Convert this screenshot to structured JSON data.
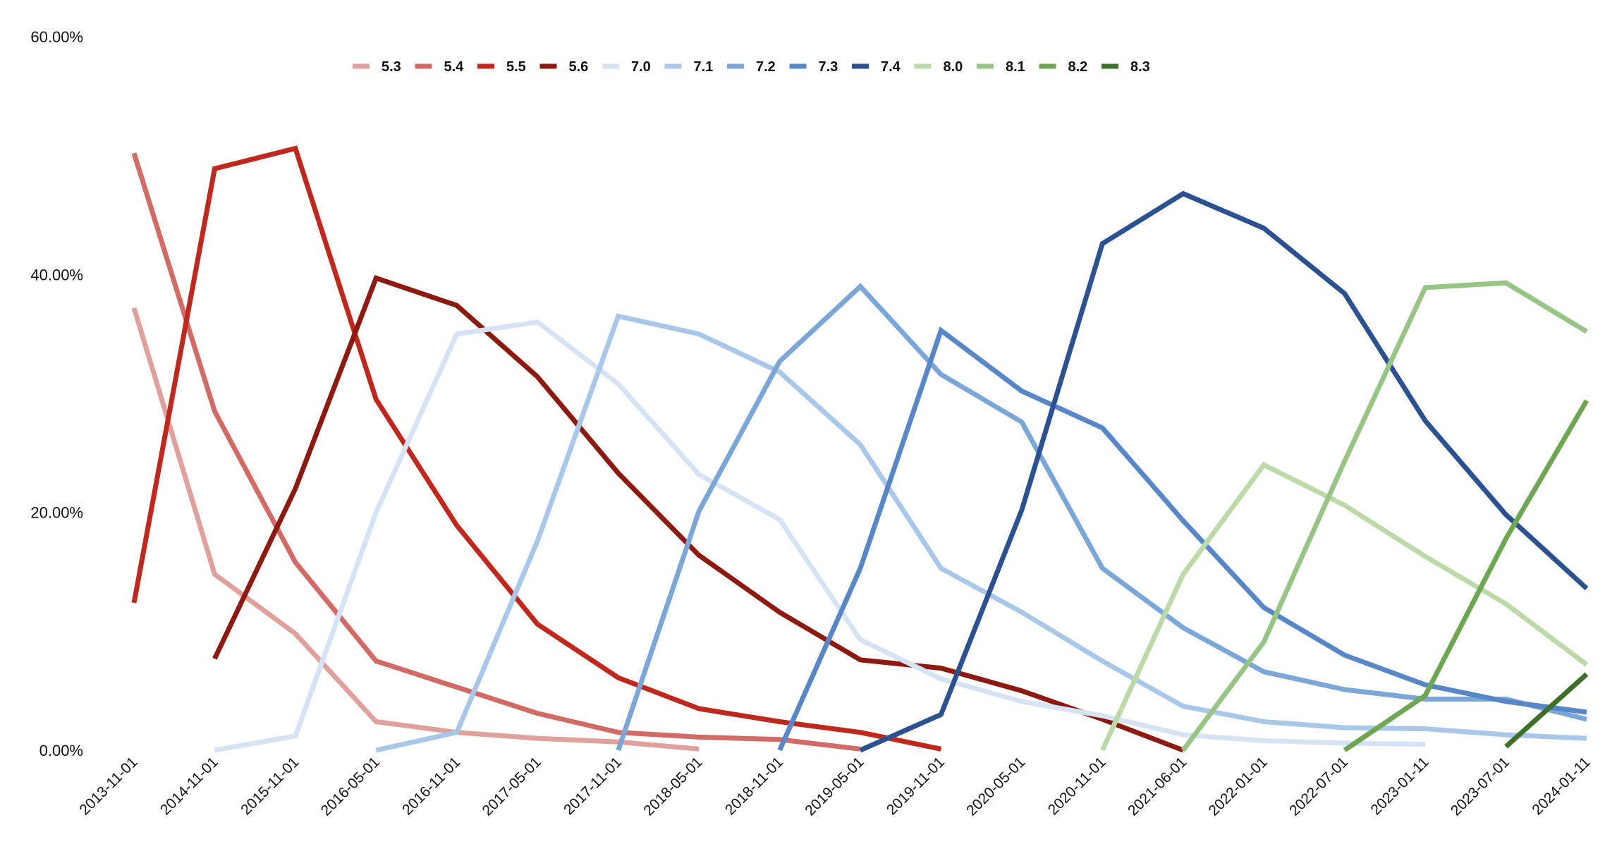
{
  "chart_data": {
    "type": "line",
    "x": [
      "2013-11-01",
      "2014-11-01",
      "2015-11-01",
      "2016-05-01",
      "2016-11-01",
      "2017-05-01",
      "2017-11-01",
      "2018-05-01",
      "2018-11-01",
      "2019-05-01",
      "2019-11-01",
      "2020-05-01",
      "2020-11-01",
      "2021-06-01",
      "2022-01-01",
      "2022-07-01",
      "2023-01-11",
      "2023-07-01",
      "2024-01-11"
    ],
    "y_ticks": [
      "0.00%",
      "20.00%",
      "40.00%",
      "60.00%"
    ],
    "ylim": [
      0,
      60
    ],
    "grid": false,
    "legend_position": "top",
    "series": [
      {
        "name": "5.3",
        "color": "#e0a09c",
        "values": [
          37.2,
          14.8,
          9.8,
          2.4,
          1.5,
          1.0,
          0.7,
          0.1,
          null,
          null,
          null,
          null,
          null,
          null,
          null,
          null,
          null,
          null,
          null
        ]
      },
      {
        "name": "5.4",
        "color": "#d26b66",
        "values": [
          50.2,
          28.5,
          15.8,
          7.5,
          5.3,
          3.1,
          1.5,
          1.1,
          0.9,
          0.1,
          null,
          null,
          null,
          null,
          null,
          null,
          null,
          null,
          null
        ]
      },
      {
        "name": "5.5",
        "color": "#c0281e",
        "values": [
          12.4,
          48.9,
          50.6,
          29.5,
          18.9,
          10.6,
          6.1,
          3.5,
          2.4,
          1.5,
          0.1,
          null,
          null,
          null,
          null,
          null,
          null,
          null,
          null
        ]
      },
      {
        "name": "5.6",
        "color": "#8c1a10",
        "values": [
          null,
          7.7,
          22.0,
          39.7,
          37.4,
          31.4,
          23.3,
          16.4,
          11.6,
          7.6,
          6.9,
          5.0,
          2.6,
          0.0,
          null,
          null,
          null,
          null,
          null
        ]
      },
      {
        "name": "7.0",
        "color": "#d6e3f4",
        "values": [
          null,
          0.0,
          1.2,
          20.0,
          35.0,
          36.0,
          30.8,
          23.2,
          19.4,
          9.3,
          6.0,
          4.1,
          2.9,
          1.3,
          0.8,
          0.6,
          0.5,
          null,
          null
        ]
      },
      {
        "name": "7.1",
        "color": "#a9c7e8",
        "values": [
          null,
          null,
          null,
          0.0,
          1.5,
          17.6,
          36.5,
          35.0,
          31.8,
          25.7,
          15.3,
          11.6,
          7.5,
          3.7,
          2.4,
          1.9,
          1.8,
          1.3,
          1.0
        ]
      },
      {
        "name": "7.2",
        "color": "#7ba6d8",
        "values": [
          null,
          null,
          null,
          null,
          null,
          null,
          0.0,
          20.1,
          32.7,
          39.0,
          31.6,
          27.6,
          15.3,
          10.3,
          6.6,
          5.1,
          4.3,
          4.3,
          2.6
        ]
      },
      {
        "name": "7.3",
        "color": "#5887c8",
        "values": [
          null,
          null,
          null,
          null,
          null,
          null,
          null,
          null,
          0.0,
          15.3,
          35.3,
          30.2,
          27.1,
          19.3,
          12.0,
          8.0,
          5.5,
          4.1,
          3.2
        ]
      },
      {
        "name": "7.4",
        "color": "#2b5190",
        "values": [
          null,
          null,
          null,
          null,
          null,
          null,
          null,
          null,
          null,
          0.0,
          3.0,
          20.2,
          42.6,
          46.8,
          43.9,
          38.4,
          27.7,
          19.8,
          13.6
        ]
      },
      {
        "name": "8.0",
        "color": "#bcd9a8",
        "values": [
          null,
          null,
          null,
          null,
          null,
          null,
          null,
          null,
          null,
          null,
          null,
          null,
          0.0,
          14.8,
          24.0,
          20.6,
          16.3,
          12.3,
          7.2
        ]
      },
      {
        "name": "8.1",
        "color": "#98c585",
        "values": [
          null,
          null,
          null,
          null,
          null,
          null,
          null,
          null,
          null,
          null,
          null,
          null,
          null,
          0.0,
          9.1,
          24.3,
          38.9,
          39.3,
          35.2
        ]
      },
      {
        "name": "8.2",
        "color": "#6fa653",
        "values": [
          null,
          null,
          null,
          null,
          null,
          null,
          null,
          null,
          null,
          null,
          null,
          null,
          null,
          null,
          null,
          0.0,
          4.6,
          17.8,
          29.4
        ]
      },
      {
        "name": "8.3",
        "color": "#3d7029",
        "values": [
          null,
          null,
          null,
          null,
          null,
          null,
          null,
          null,
          null,
          null,
          null,
          null,
          null,
          null,
          null,
          null,
          null,
          0.3,
          6.4
        ]
      }
    ]
  }
}
